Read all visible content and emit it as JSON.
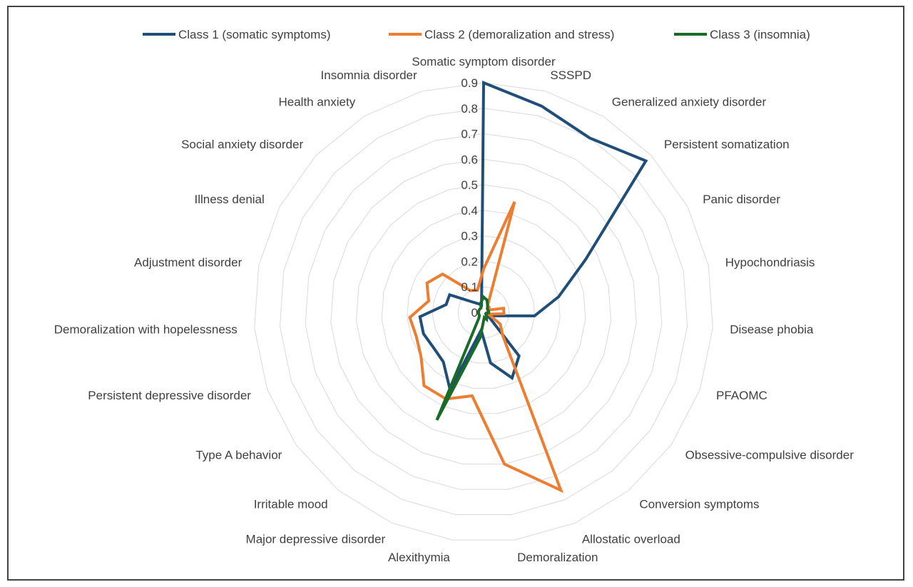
{
  "chart_data": {
    "type": "radar",
    "title": "",
    "rmax": 0.9,
    "ticks": [
      0,
      0.1,
      0.2,
      0.3,
      0.4,
      0.5,
      0.6,
      0.7,
      0.8,
      0.9
    ],
    "tick_labels": [
      "0",
      "0.1",
      "0.2",
      "0.3",
      "0.4",
      "0.5",
      "0.6",
      "0.7",
      "0.8",
      "0.9"
    ],
    "grid": true,
    "legend_position": "top",
    "categories": [
      "Somatic symptom disorder",
      "SSSPD",
      "Generalized anxiety disorder",
      "Persistent somatization",
      "Panic disorder",
      "Hypochondriasis",
      "Disease phobia",
      "PFAOMC",
      "Obsessive-compulsive disorder",
      "Conversion symptoms",
      "Allostatic overload",
      "Demoralization",
      "Alexithymia",
      "Major depressive disorder",
      "Irritable mood",
      "Type A behavior",
      "Persistent depressive disorder",
      "Demoralization with hopelessness",
      "Adjustment disorder",
      "Illness denial",
      "Social anxiety disorder",
      "Health anxiety",
      "Insomnia disorder"
    ],
    "series": [
      {
        "name": "Class 1  (somatic symptoms)",
        "color": "#1f4e79",
        "values": [
          0.9,
          0.84,
          0.8,
          0.87,
          0.45,
          0.3,
          0.2,
          0.04,
          0.02,
          0.22,
          0.28,
          0.2,
          0.07,
          0.33,
          0.25,
          0.24,
          0.25,
          0.25,
          0.15,
          0.15,
          0.06,
          0.04,
          0.03
        ]
      },
      {
        "name": "Class 2  (demoralization and stress)",
        "color": "#ed7d31",
        "values": [
          0.17,
          0.45,
          0.03,
          0.03,
          0.02,
          0.08,
          0.08,
          0.02,
          0.08,
          0.12,
          0.76,
          0.6,
          0.33,
          0.37,
          0.37,
          0.3,
          0.28,
          0.29,
          0.22,
          0.25,
          0.22,
          0.1,
          0.09
        ]
      },
      {
        "name": "Class 3  (insomnia)",
        "color": "#1a6b27",
        "values": [
          0.06,
          0.05,
          0.03,
          0.02,
          0.02,
          0.02,
          0.02,
          0.01,
          0.01,
          0.02,
          0.03,
          0.02,
          0.1,
          0.46,
          0.03,
          0.02,
          0.02,
          0.02,
          0.02,
          0.02,
          0.02,
          0.02,
          0.04
        ]
      }
    ]
  }
}
